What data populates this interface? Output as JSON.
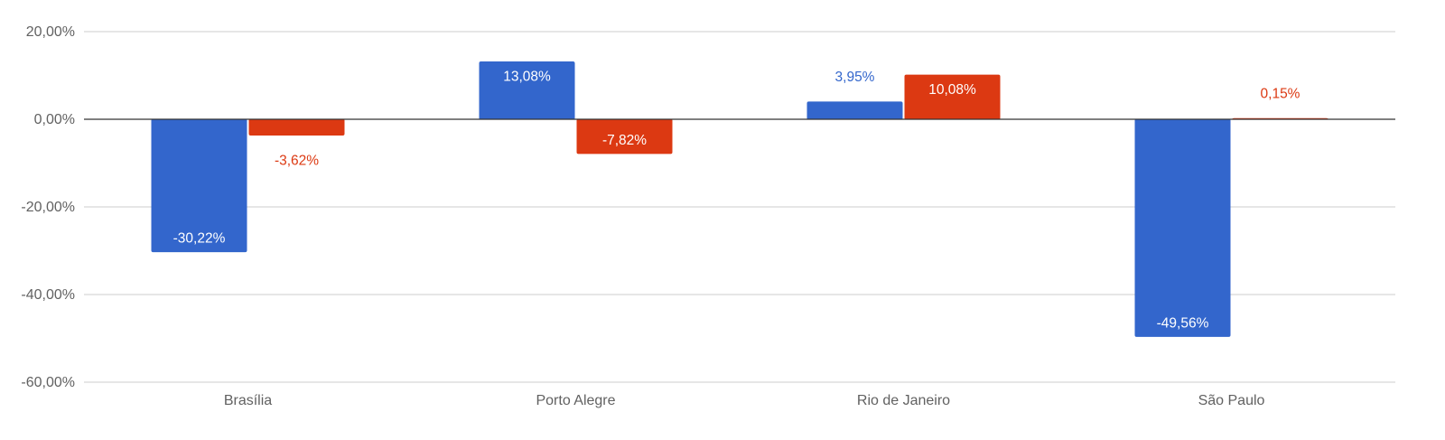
{
  "chart_data": {
    "type": "bar",
    "categories": [
      "Brasília",
      "Porto Alegre",
      "Rio de Janeiro",
      "São Paulo"
    ],
    "series": [
      {
        "values": [
          -30.22,
          13.08,
          3.95,
          -49.56
        ],
        "labels": [
          "-30,22%",
          "13,08%",
          "3,95%",
          "-49,56%"
        ],
        "color": "#3366cc"
      },
      {
        "values": [
          -3.62,
          -7.82,
          10.08,
          0.15
        ],
        "labels": [
          "-3,62%",
          "-7,82%",
          "10,08%",
          "0,15%"
        ],
        "color": "#dc3912"
      }
    ],
    "ylim": [
      -60,
      20
    ],
    "yticks": [
      20,
      0,
      -20,
      -40,
      -60
    ],
    "ytick_labels": [
      "20,00%",
      "0,00%",
      "-20,00%",
      "-40,00%",
      "-60,00%"
    ],
    "grid": true,
    "legend": "none",
    "title": "",
    "xlabel": "",
    "ylabel": ""
  }
}
